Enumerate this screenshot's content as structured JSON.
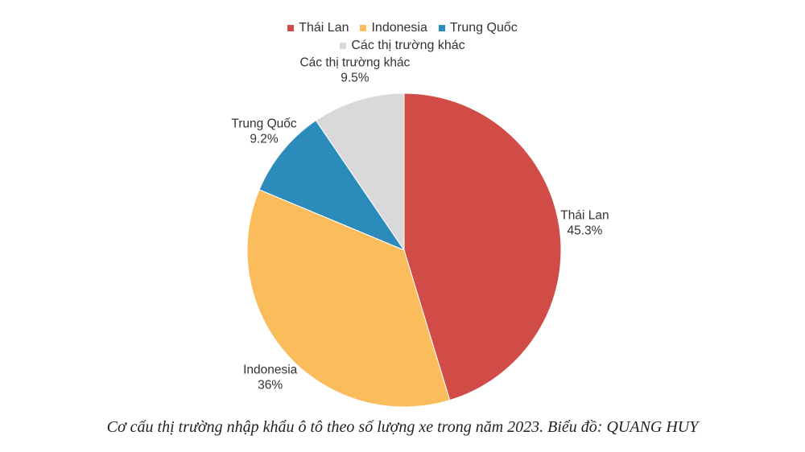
{
  "chart_data": {
    "type": "pie",
    "categories": [
      "Thái Lan",
      "Indonesia",
      "Trung Quốc",
      "Các thị trường khác"
    ],
    "values": [
      45.3,
      36,
      9.2,
      9.5
    ],
    "value_labels": [
      "45.3%",
      "36%",
      "9.2%",
      "9.5%"
    ],
    "colors": [
      "#d14b47",
      "#fbbd5c",
      "#2b8bbb",
      "#d9d9d9"
    ],
    "legend_placement": "top",
    "start_angle_deg": 0,
    "direction": "clockwise"
  },
  "caption": "Cơ cấu thị trường nhập khẩu ô tô theo số lượng xe trong năm 2023. Biểu đồ: QUANG HUY"
}
